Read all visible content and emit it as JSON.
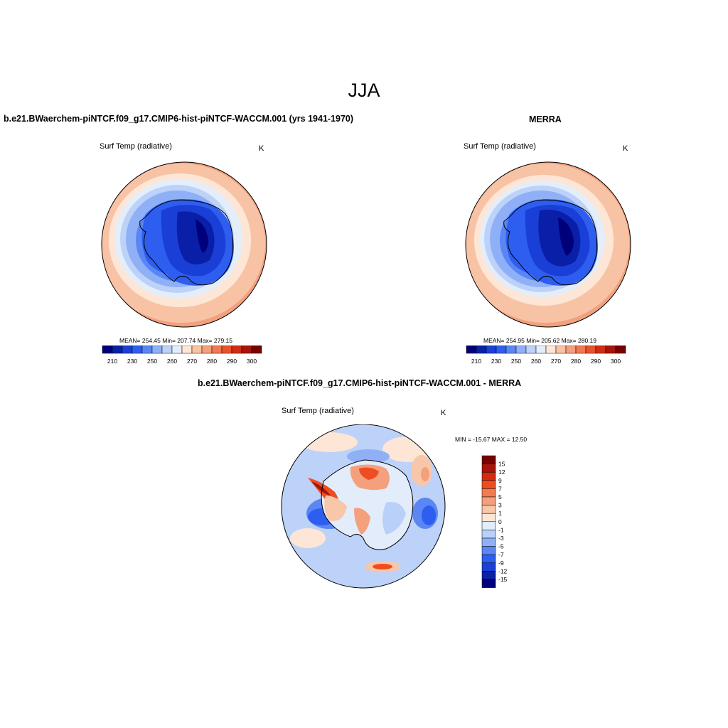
{
  "figure": {
    "title": "JJA",
    "top_left": {
      "case": "b.e21.BWaerchem-piNTCF.f09_g17.CMIP6-hist-piNTCF-WACCM.001 (yrs 1941-1970)",
      "variable": "Surf Temp (radiative)",
      "units": "K",
      "stats": "MEAN= 254.45   Min= 207.74   Max= 279.15"
    },
    "top_right": {
      "case": "MERRA",
      "variable": "Surf Temp (radiative)",
      "units": "K",
      "stats": "MEAN= 254.95   Min= 205.62   Max= 280.19"
    },
    "bottom": {
      "case": "b.e21.BWaerchem-piNTCF.f09_g17.CMIP6-hist-piNTCF-WACCM.001 - MERRA",
      "variable": "Surf Temp (radiative)",
      "units": "K",
      "stats": "MIN = -15.67 MAX =  12.50"
    }
  },
  "colorbars": {
    "abs": {
      "colors": [
        "#00007a",
        "#0a1fa8",
        "#1a3fd6",
        "#2e5ef0",
        "#5a86f5",
        "#8fb0f7",
        "#bcd2f8",
        "#e4eefa",
        "#fde6d6",
        "#f8c3a5",
        "#f3a07e",
        "#f07a55",
        "#e8522d",
        "#cf2e14",
        "#a8140a",
        "#780000"
      ],
      "ticks": [
        "210",
        "230",
        "250",
        "260",
        "270",
        "280",
        "290",
        "300"
      ]
    },
    "diff": {
      "colors": [
        "#780000",
        "#a8140a",
        "#d32a12",
        "#ee4d22",
        "#f27b4f",
        "#f4a07d",
        "#f8c6a8",
        "#fde6d5",
        "#e2ecfa",
        "#b9d0f8",
        "#8fb0f6",
        "#5b86f3",
        "#2e5ef0",
        "#1a40d6",
        "#0b20a8",
        "#00007a"
      ],
      "ticks": [
        "15",
        "12",
        "9",
        "7",
        "5",
        "3",
        "1",
        "0",
        "-1",
        "-3",
        "-5",
        "-7",
        "-9",
        "-12",
        "-15"
      ]
    }
  }
}
